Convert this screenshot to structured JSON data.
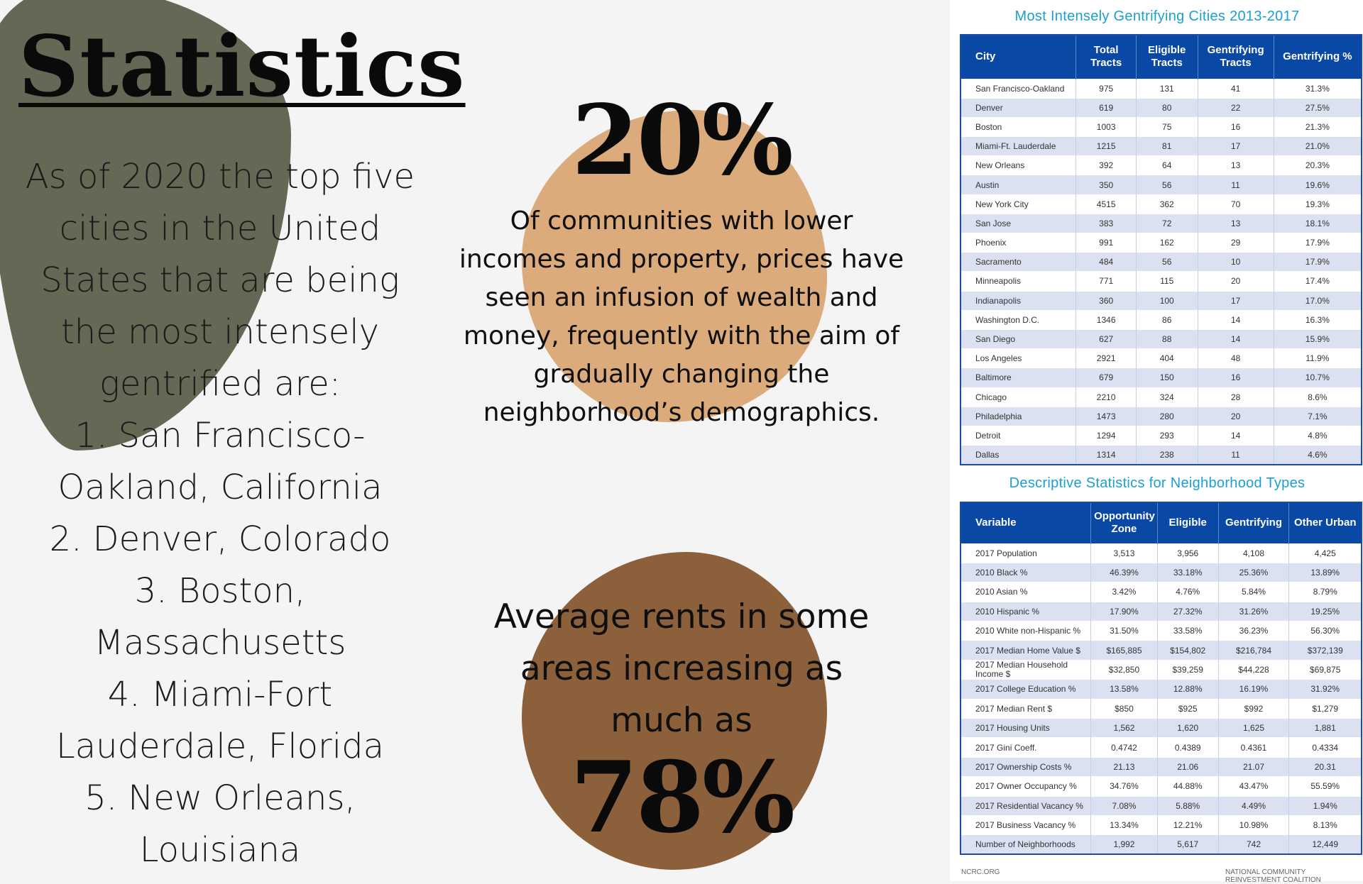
{
  "left": {
    "title": "Statistics",
    "intro_lines": [
      "As of 2020 the top five",
      "cities in the United",
      "States that are being",
      "the most intensely",
      "gentrified are:",
      "1. San Francisco-",
      "Oakland, California",
      "2. Denver, Colorado",
      "3. Boston,",
      "Massachusetts",
      "4. Miami-Fort",
      "Lauderdale, Florida",
      "5. New Orleans,",
      "Louisiana"
    ]
  },
  "middle": {
    "stat1": {
      "value": "20%",
      "lines": [
        "Of communities with lower",
        "incomes and property, prices have",
        "seen an infusion of wealth and",
        "money, frequently with the aim of",
        "gradually changing the",
        "neighborhood’s demographics."
      ]
    },
    "stat2": {
      "lines": [
        "Average rents in some",
        "areas increasing as",
        "much as"
      ],
      "value": "78%"
    }
  },
  "table1": {
    "title": "Most Intensely Gentrifying Cities 2013-2017",
    "headers": [
      "City",
      "Total Tracts",
      "Eligible Tracts",
      "Gentrifying Tracts",
      "Gentrifying %"
    ],
    "rows": [
      [
        "San Francisco-Oakland",
        "975",
        "131",
        "41",
        "31.3%"
      ],
      [
        "Denver",
        "619",
        "80",
        "22",
        "27.5%"
      ],
      [
        "Boston",
        "1003",
        "75",
        "16",
        "21.3%"
      ],
      [
        "Miami-Ft. Lauderdale",
        "1215",
        "81",
        "17",
        "21.0%"
      ],
      [
        "New Orleans",
        "392",
        "64",
        "13",
        "20.3%"
      ],
      [
        "Austin",
        "350",
        "56",
        "11",
        "19.6%"
      ],
      [
        "New York City",
        "4515",
        "362",
        "70",
        "19.3%"
      ],
      [
        "San Jose",
        "383",
        "72",
        "13",
        "18.1%"
      ],
      [
        "Phoenix",
        "991",
        "162",
        "29",
        "17.9%"
      ],
      [
        "Sacramento",
        "484",
        "56",
        "10",
        "17.9%"
      ],
      [
        "Minneapolis",
        "771",
        "115",
        "20",
        "17.4%"
      ],
      [
        "Indianapolis",
        "360",
        "100",
        "17",
        "17.0%"
      ],
      [
        "Washington D.C.",
        "1346",
        "86",
        "14",
        "16.3%"
      ],
      [
        "San Diego",
        "627",
        "88",
        "14",
        "15.9%"
      ],
      [
        "Los Angeles",
        "2921",
        "404",
        "48",
        "11.9%"
      ],
      [
        "Baltimore",
        "679",
        "150",
        "16",
        "10.7%"
      ],
      [
        "Chicago",
        "2210",
        "324",
        "28",
        "8.6%"
      ],
      [
        "Philadelphia",
        "1473",
        "280",
        "20",
        "7.1%"
      ],
      [
        "Detroit",
        "1294",
        "293",
        "14",
        "4.8%"
      ],
      [
        "Dallas",
        "1314",
        "238",
        "11",
        "4.6%"
      ]
    ]
  },
  "table2": {
    "title": "Descriptive Statistics for Neighborhood Types",
    "headers": [
      "Variable",
      "Opportunity Zone",
      "Eligible",
      "Gentrifying",
      "Other Urban"
    ],
    "rows": [
      [
        "2017 Population",
        "3,513",
        "3,956",
        "4,108",
        "4,425"
      ],
      [
        "2010 Black %",
        "46.39%",
        "33.18%",
        "25.36%",
        "13.89%"
      ],
      [
        "2010 Asian %",
        "3.42%",
        "4.76%",
        "5.84%",
        "8.79%"
      ],
      [
        "2010 Hispanic %",
        "17.90%",
        "27.32%",
        "31.26%",
        "19.25%"
      ],
      [
        "2010 White non-Hispanic %",
        "31.50%",
        "33.58%",
        "36.23%",
        "56.30%"
      ],
      [
        "2017 Median Home Value $",
        "$165,885",
        "$154,802",
        "$216,784",
        "$372,139"
      ],
      [
        "2017 Median Household Income $",
        "$32,850",
        "$39,259",
        "$44,228",
        "$69,875"
      ],
      [
        "2017 College Education %",
        "13.58%",
        "12.88%",
        "16.19%",
        "31.92%"
      ],
      [
        "2017 Median Rent $",
        "$850",
        "$925",
        "$992",
        "$1,279"
      ],
      [
        "2017 Housing Units",
        "1,562",
        "1,620",
        "1,625",
        "1,881"
      ],
      [
        "2017 Gini Coeff.",
        "0.4742",
        "0.4389",
        "0.4361",
        "0.4334"
      ],
      [
        "2017 Ownership Costs %",
        "21.13",
        "21.06",
        "21.07",
        "20.31"
      ],
      [
        "2017 Owner Occupancy %",
        "34.76%",
        "44.88%",
        "43.47%",
        "55.59%"
      ],
      [
        "2017 Residential Vacancy %",
        "7.08%",
        "5.88%",
        "4.49%",
        "1.94%"
      ],
      [
        "2017 Business Vacancy %",
        "13.34%",
        "12.21%",
        "10.98%",
        "8.13%"
      ],
      [
        "Number of Neighborhoods",
        "1,992",
        "5,617",
        "742",
        "12,449"
      ]
    ],
    "footer_left": "NCRC.ORG",
    "footer_right": "NATIONAL COMMUNITY REINVESTMENT COALITION"
  },
  "colors": {
    "olive_blob": "#666755",
    "tan_blob": "#dcab7b",
    "brown_blob": "#8c603a",
    "table_header": "#0a48a6",
    "table_title": "#1aa0d2"
  }
}
